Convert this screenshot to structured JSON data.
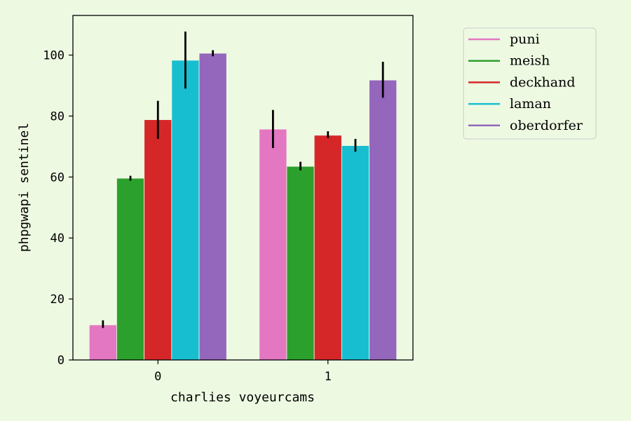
{
  "chart_data": {
    "type": "bar",
    "title": "",
    "xlabel": "charlies voyeurcams",
    "ylabel": "phpgwapi sentinel",
    "categories": [
      "0",
      "1"
    ],
    "ylim": [
      0,
      113
    ],
    "yticks": [
      0,
      20,
      40,
      60,
      80,
      100
    ],
    "legend_position": "outside-top-right",
    "series": [
      {
        "name": "puni",
        "color": "#e377c2",
        "values": [
          11.5,
          75.7
        ],
        "err_low": [
          10.5,
          69.5
        ],
        "err_high": [
          13,
          82
        ]
      },
      {
        "name": "meish",
        "color": "#2ca02c",
        "values": [
          59.6,
          63.5
        ],
        "err_low": [
          58.8,
          62.2
        ],
        "err_high": [
          60.4,
          65
        ]
      },
      {
        "name": "deckhand",
        "color": "#d62728",
        "values": [
          78.8,
          73.7
        ],
        "err_low": [
          72.5,
          72.8
        ],
        "err_high": [
          85,
          75
        ]
      },
      {
        "name": "laman",
        "color": "#17becf",
        "values": [
          98.3,
          70.3
        ],
        "err_low": [
          89,
          68.3
        ],
        "err_high": [
          107.7,
          72.5
        ]
      },
      {
        "name": "oberdorfer",
        "color": "#9467bd",
        "values": [
          100.6,
          91.8
        ],
        "err_low": [
          99.6,
          86
        ],
        "err_high": [
          101.6,
          97.8
        ]
      }
    ]
  }
}
